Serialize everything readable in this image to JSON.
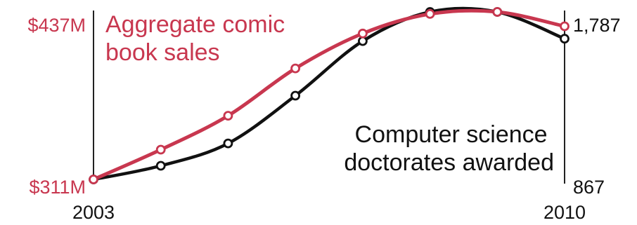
{
  "chart_data": {
    "type": "line",
    "x": [
      2003,
      2004,
      2005,
      2006,
      2007,
      2008,
      2009,
      2010
    ],
    "xlim": [
      2003,
      2010
    ],
    "x_tick_labels": [
      "2003",
      "2010"
    ],
    "grid": false,
    "legend": "none",
    "series": [
      {
        "name": "Aggregate comic book sales",
        "axis": "left",
        "color": "#c8374f",
        "values": [
          311,
          340,
          373,
          419,
          453,
          472,
          474,
          460
        ]
      },
      {
        "name": "Computer science doctorates awarded",
        "axis": "right",
        "color": "#111111",
        "values": [
          867,
          942,
          1065,
          1327,
          1627,
          1787,
          1787,
          1640
        ]
      }
    ],
    "left_axis": {
      "range": [
        311,
        474
      ],
      "tick_labels": [
        "$437M",
        "$311M"
      ],
      "tick_values": [
        437,
        311
      ]
    },
    "right_axis": {
      "range": [
        867,
        1787
      ],
      "tick_labels": [
        "1,787",
        "867"
      ],
      "tick_values": [
        1787,
        867
      ]
    },
    "annotations": [
      {
        "series": 0,
        "lines": [
          "Aggregate comic",
          "book sales"
        ]
      },
      {
        "series": 1,
        "lines": [
          "Computer science",
          "doctorates awarded"
        ]
      }
    ]
  }
}
